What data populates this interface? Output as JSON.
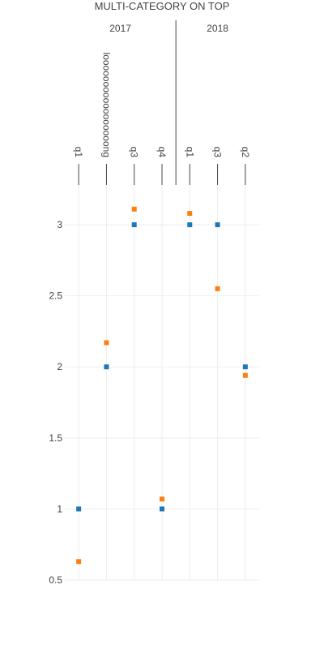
{
  "chart_data": {
    "type": "scatter",
    "title": "MULTI-CATEGORY ON TOP",
    "xaxis_position": "top",
    "groups": [
      {
        "label": "2017",
        "categories": [
          "q1",
          "looooooooooooooooong",
          "q3",
          "q4"
        ]
      },
      {
        "label": "2018",
        "categories": [
          "q1",
          "q3",
          "q2"
        ]
      }
    ],
    "y_ticks": [
      0.5,
      1,
      1.5,
      2,
      2.5,
      3
    ],
    "y_tick_labels": [
      "0.5",
      "1",
      "1.5",
      "2",
      "2.5",
      "3"
    ],
    "ylim": [
      0.5,
      3.28
    ],
    "grid": true,
    "legend": "none",
    "series": [
      {
        "color": "#1f77b4",
        "marker": "square",
        "values": [
          1,
          2,
          3,
          1,
          3,
          3,
          2
        ]
      },
      {
        "color": "#ff7f0e",
        "marker": "square",
        "values": [
          0.63,
          2.17,
          3.11,
          1.07,
          3.08,
          2.55,
          1.94
        ]
      }
    ]
  }
}
